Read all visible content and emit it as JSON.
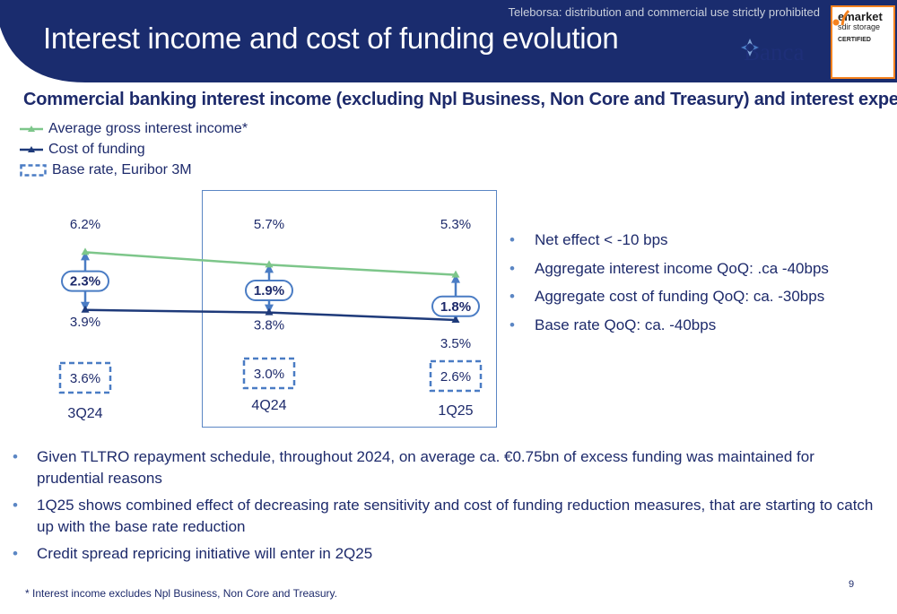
{
  "header": {
    "title": "Interest income and cost of funding evolution",
    "watermark": "Teleborsa: distribution and commercial use strictly prohibited",
    "logo_text": "Banca",
    "badge": {
      "line1": "emarket",
      "line2": "sdir storage",
      "line3": "CERTIFIED"
    },
    "colors": {
      "banner": "#1a2c6e",
      "accent": "#f5821f"
    }
  },
  "subtitle": "Commercial banking interest income (excluding Npl Business, Non Core and Treasury) and interest expenses",
  "legend": [
    {
      "label": "Average gross interest income*",
      "color": "#7dc68a",
      "marker": "triangle"
    },
    {
      "label": "Cost of funding",
      "color": "#1e3a7a",
      "marker": "triangle"
    },
    {
      "label": "Base rate, Euribor 3M",
      "color": "#4a7cc4",
      "marker": "dashed-box"
    }
  ],
  "chart_data": {
    "type": "line",
    "categories": [
      "3Q24",
      "4Q24",
      "1Q25"
    ],
    "series": [
      {
        "name": "Average gross interest income*",
        "values": [
          6.2,
          5.7,
          5.3
        ],
        "labels": [
          "6.2%",
          "5.7%",
          "5.3%"
        ],
        "color": "#7dc68a"
      },
      {
        "name": "Cost of funding",
        "values": [
          3.9,
          3.8,
          3.5
        ],
        "labels": [
          "3.9%",
          "3.8%",
          "3.5%"
        ],
        "color": "#1e3a7a"
      },
      {
        "name": "Base rate, Euribor 3M",
        "values": [
          3.6,
          3.0,
          2.6
        ],
        "labels": [
          "3.6%",
          "3.0%",
          "2.6%"
        ],
        "color": "#4a7cc4"
      }
    ],
    "spread": {
      "values": [
        2.3,
        1.9,
        1.8
      ],
      "labels": [
        "2.3%",
        "1.9%",
        "1.8%"
      ]
    },
    "highlighted_categories": [
      "4Q24",
      "1Q25"
    ]
  },
  "side_bullets": [
    "Net effect < -10 bps",
    "Aggregate interest income QoQ: .ca -40bps",
    "Aggregate cost of funding QoQ: ca. -30bps",
    "Base rate QoQ: ca. -40bps"
  ],
  "bottom_bullets": [
    "Given TLTRO repayment schedule, throughout 2024, on average ca. €0.75bn of excess funding was maintained for prudential reasons",
    "1Q25 shows combined effect of decreasing rate sensitivity and cost of funding reduction measures, that are starting to catch up with the base rate reduction",
    "Credit spread repricing initiative will enter in 2Q25"
  ],
  "footnote": "* Interest income excludes Npl Business, Non Core and Treasury.",
  "page_number": "9"
}
